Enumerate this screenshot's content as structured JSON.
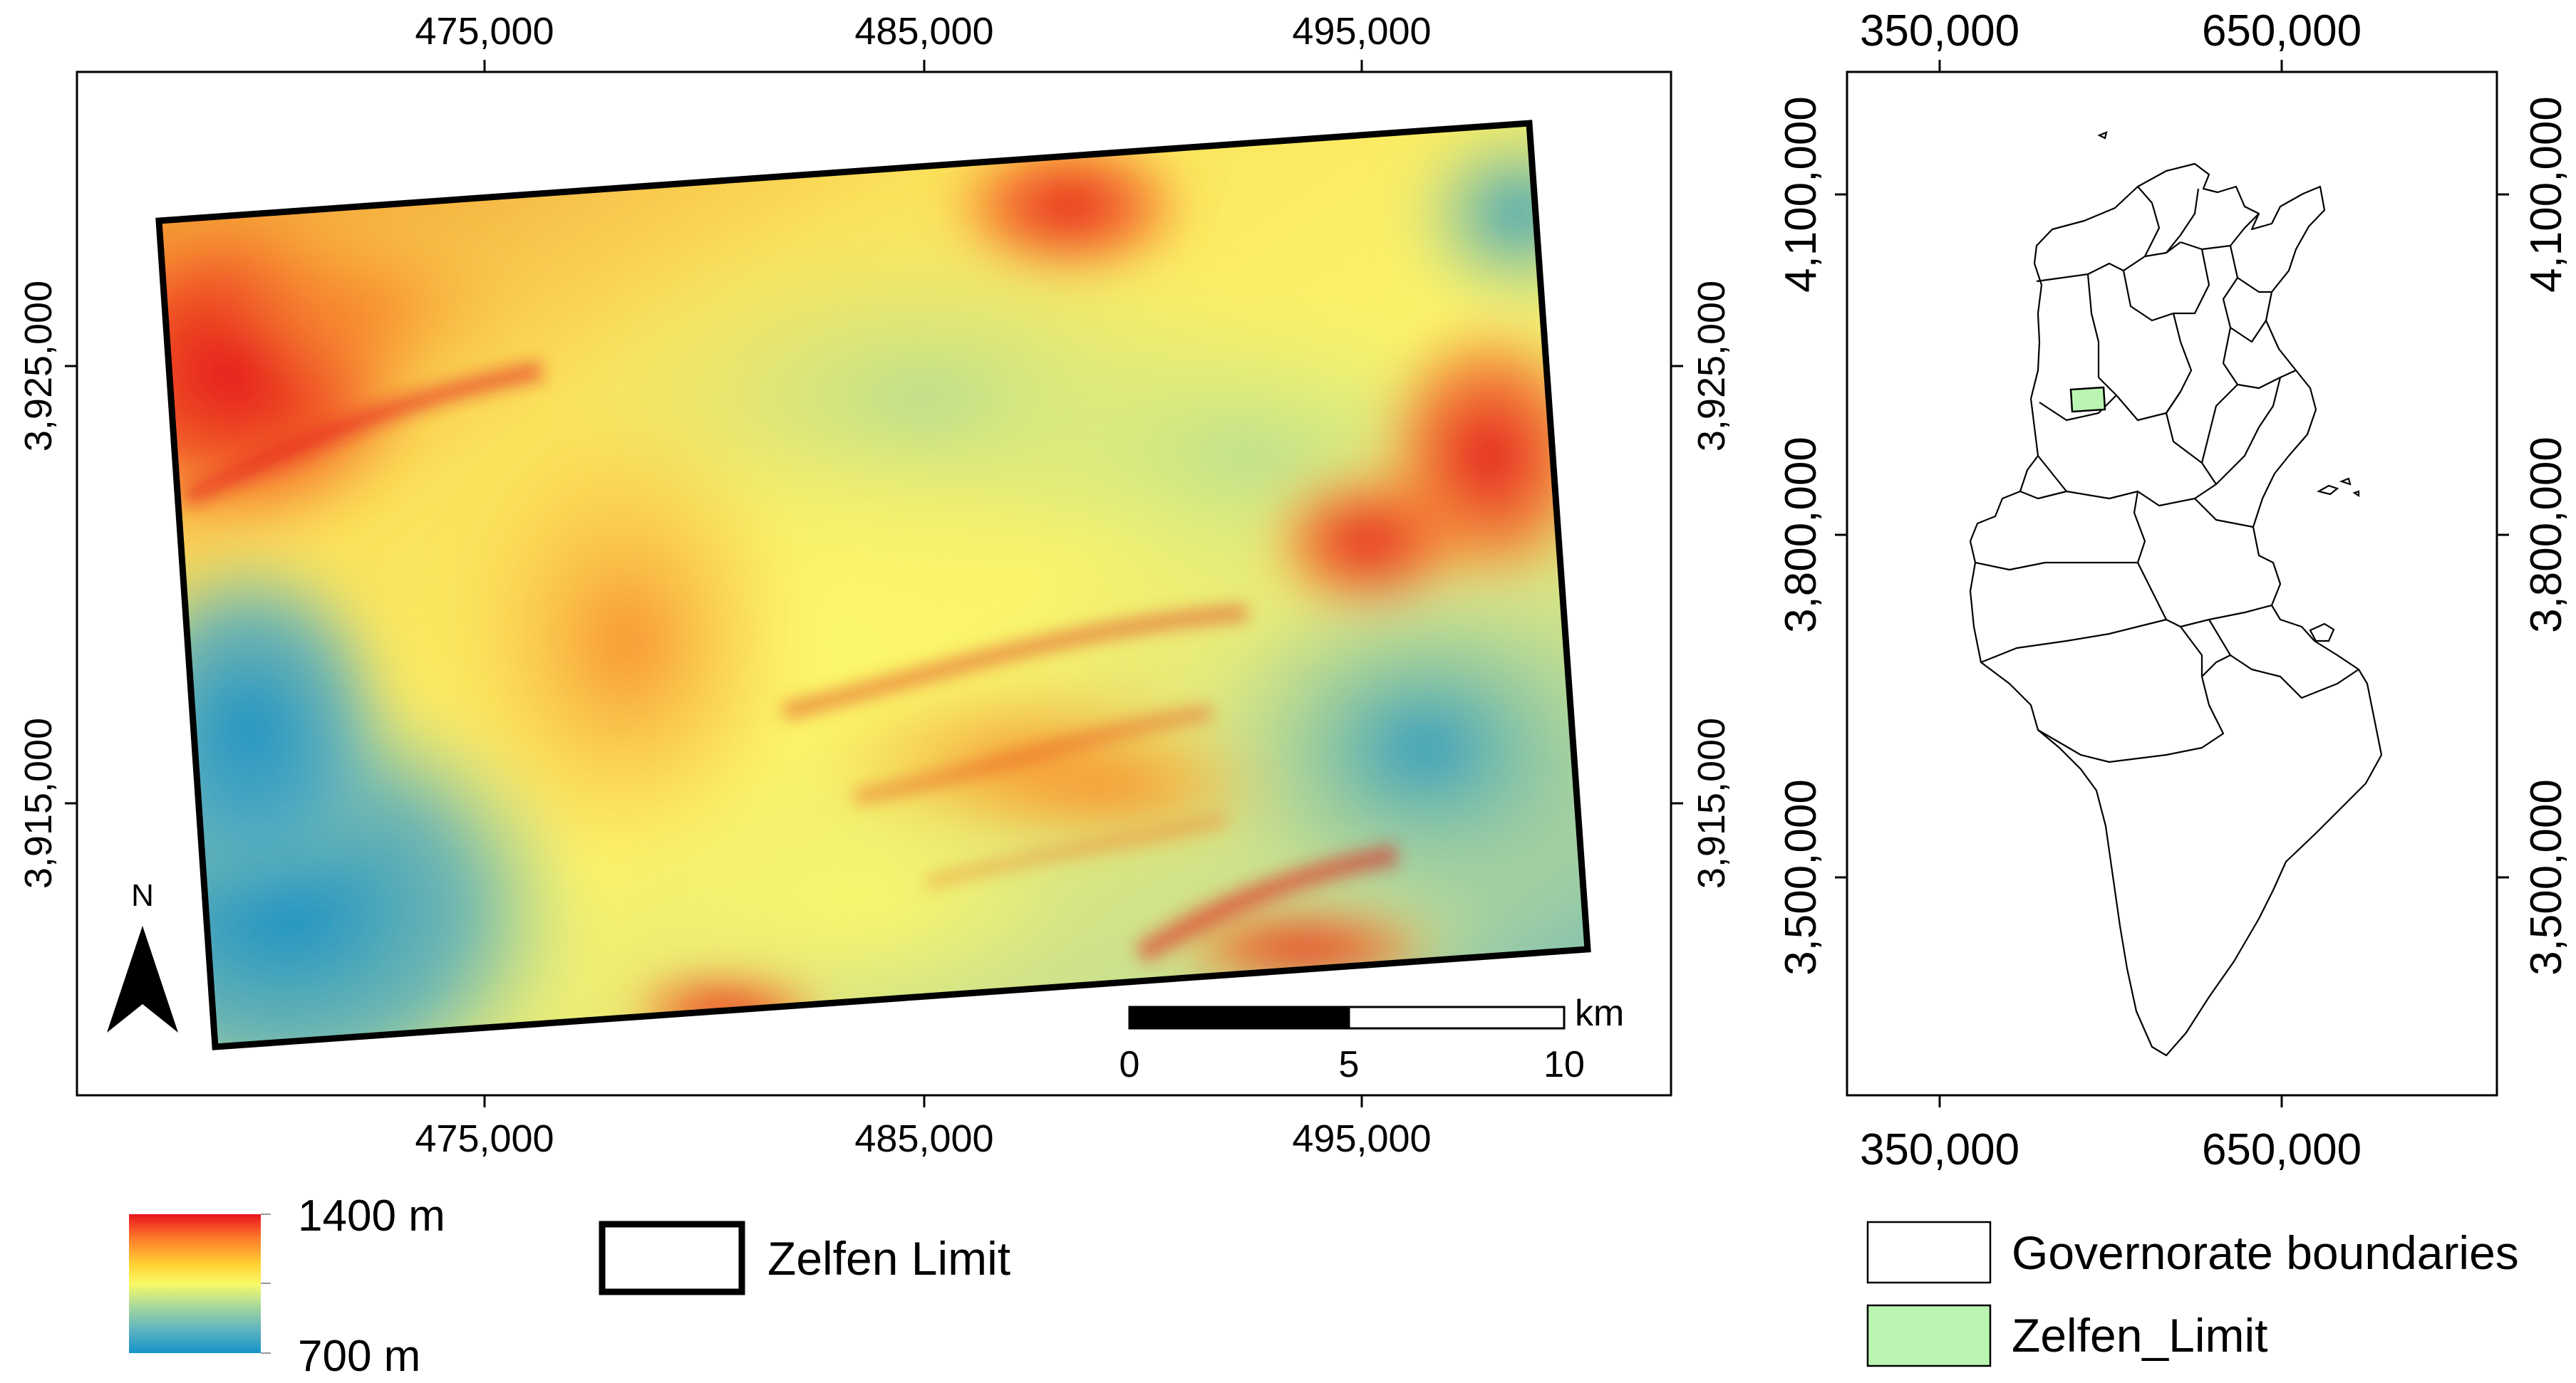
{
  "main_map": {
    "x_ticks": [
      "475,000",
      "485,000",
      "495,000"
    ],
    "y_ticks": [
      "3,925,000",
      "3,915,000"
    ],
    "north_label": "N",
    "scale_bar": {
      "unit": "km",
      "labels": [
        "0",
        "5",
        "10"
      ]
    }
  },
  "inset_map": {
    "x_ticks": [
      "350,000",
      "650,000"
    ],
    "y_ticks": [
      "4,100,000",
      "3,800,000",
      "3,500,000"
    ]
  },
  "legend_elevation": {
    "high": "1400 m",
    "low": "700 m",
    "colors": [
      "#e8141c",
      "#ff7f2a",
      "#ffd033",
      "#fafa66",
      "#a9d99a",
      "#5fb4c0",
      "#1393c8"
    ]
  },
  "legend_limit": {
    "label": "Zelfen Limit"
  },
  "legend_inset": {
    "items": [
      {
        "label": "Governorate boundaries",
        "fill": "#ffffff"
      },
      {
        "label": "Zelfen_Limit",
        "fill": "#b9f5b1"
      }
    ]
  }
}
